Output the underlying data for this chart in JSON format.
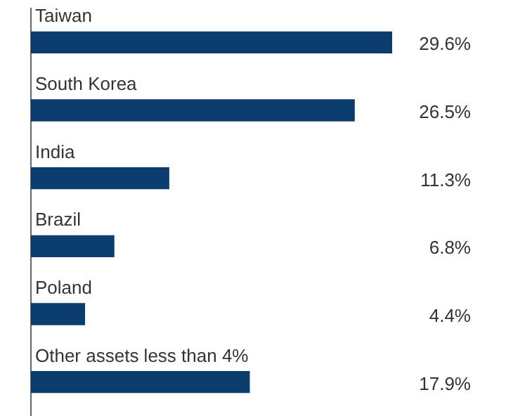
{
  "chart_data": {
    "type": "bar",
    "orientation": "horizontal",
    "categories": [
      "Taiwan",
      "South Korea",
      "India",
      "Brazil",
      "Poland",
      "Other assets less than 4%"
    ],
    "values": [
      29.6,
      26.5,
      11.3,
      6.8,
      4.4,
      17.9
    ],
    "value_labels": [
      "29.6%",
      "26.5%",
      "11.3%",
      "6.8%",
      "4.4%",
      "17.9%"
    ],
    "color": "#0b3d6e",
    "legend": false,
    "tick_labels": false
  }
}
